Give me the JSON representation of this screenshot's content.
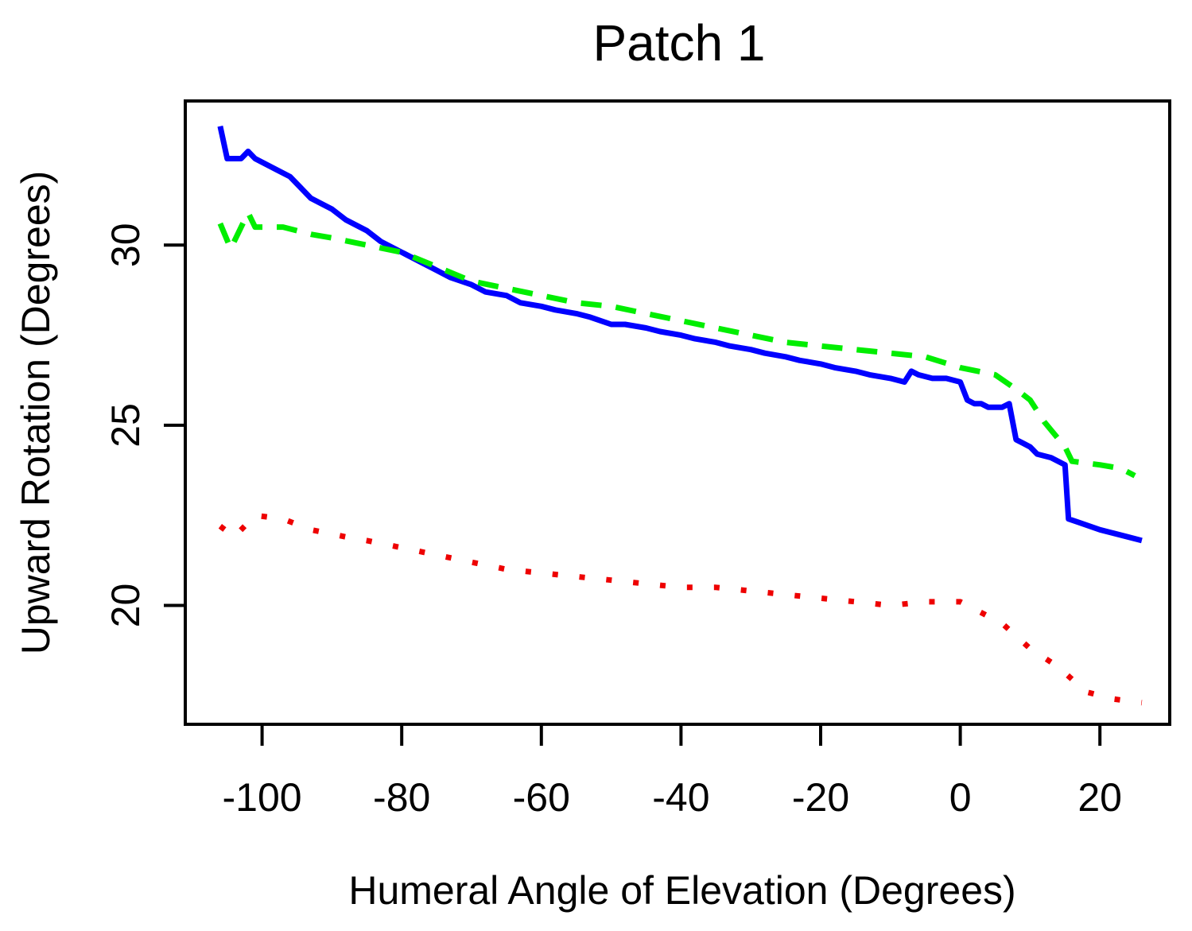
{
  "chart_data": {
    "type": "line",
    "title": "Patch 1",
    "xlabel": "Humeral Angle of Elevation (Degrees)",
    "ylabel": "Upward Rotation (Degrees)",
    "xlim": [
      -111,
      30
    ],
    "ylim": [
      16.7,
      34.0
    ],
    "xticks": [
      -100,
      -80,
      -60,
      -40,
      -20,
      0,
      20
    ],
    "yticks": [
      20,
      25,
      30
    ],
    "grid": false,
    "legend": "none",
    "series": [
      {
        "color": "#0000ff",
        "style": "solid",
        "points": [
          [
            -106,
            33.3
          ],
          [
            -105,
            32.4
          ],
          [
            -103,
            32.4
          ],
          [
            -102,
            32.6
          ],
          [
            -101,
            32.4
          ],
          [
            -98,
            32.1
          ],
          [
            -96,
            31.9
          ],
          [
            -93,
            31.3
          ],
          [
            -90,
            31.0
          ],
          [
            -88,
            30.7
          ],
          [
            -85,
            30.4
          ],
          [
            -83,
            30.1
          ],
          [
            -80,
            29.8
          ],
          [
            -75,
            29.3
          ],
          [
            -73,
            29.1
          ],
          [
            -70,
            28.9
          ],
          [
            -68,
            28.7
          ],
          [
            -65,
            28.6
          ],
          [
            -63,
            28.4
          ],
          [
            -60,
            28.3
          ],
          [
            -58,
            28.2
          ],
          [
            -55,
            28.1
          ],
          [
            -53,
            28.0
          ],
          [
            -50,
            27.8
          ],
          [
            -48,
            27.8
          ],
          [
            -45,
            27.7
          ],
          [
            -43,
            27.6
          ],
          [
            -40,
            27.5
          ],
          [
            -38,
            27.4
          ],
          [
            -35,
            27.3
          ],
          [
            -33,
            27.2
          ],
          [
            -30,
            27.1
          ],
          [
            -28,
            27.0
          ],
          [
            -25,
            26.9
          ],
          [
            -23,
            26.8
          ],
          [
            -20,
            26.7
          ],
          [
            -18,
            26.6
          ],
          [
            -15,
            26.5
          ],
          [
            -13,
            26.4
          ],
          [
            -10,
            26.3
          ],
          [
            -8,
            26.2
          ],
          [
            -7,
            26.5
          ],
          [
            -6,
            26.4
          ],
          [
            -4,
            26.3
          ],
          [
            -2,
            26.3
          ],
          [
            0,
            26.2
          ],
          [
            1,
            25.7
          ],
          [
            2,
            25.6
          ],
          [
            3,
            25.6
          ],
          [
            4,
            25.5
          ],
          [
            6,
            25.5
          ],
          [
            7,
            25.6
          ],
          [
            8,
            24.6
          ],
          [
            9,
            24.5
          ],
          [
            10,
            24.4
          ],
          [
            11,
            24.2
          ],
          [
            13,
            24.1
          ],
          [
            15,
            23.9
          ],
          [
            15.5,
            22.4
          ],
          [
            17,
            22.3
          ],
          [
            20,
            22.1
          ],
          [
            22,
            22.0
          ],
          [
            24,
            21.9
          ],
          [
            26,
            21.8
          ]
        ]
      },
      {
        "color": "#00ee00",
        "style": "dashed",
        "points": [
          [
            -106,
            30.6
          ],
          [
            -104.5,
            29.9
          ],
          [
            -102,
            30.9
          ],
          [
            -101,
            30.5
          ],
          [
            -97,
            30.5
          ],
          [
            -93,
            30.3
          ],
          [
            -90,
            30.2
          ],
          [
            -85,
            30.0
          ],
          [
            -80,
            29.8
          ],
          [
            -75,
            29.4
          ],
          [
            -70,
            29.0
          ],
          [
            -65,
            28.8
          ],
          [
            -60,
            28.6
          ],
          [
            -55,
            28.4
          ],
          [
            -50,
            28.3
          ],
          [
            -45,
            28.1
          ],
          [
            -40,
            27.9
          ],
          [
            -35,
            27.7
          ],
          [
            -30,
            27.5
          ],
          [
            -25,
            27.3
          ],
          [
            -20,
            27.2
          ],
          [
            -15,
            27.1
          ],
          [
            -10,
            27.0
          ],
          [
            -5,
            26.9
          ],
          [
            0,
            26.6
          ],
          [
            5,
            26.4
          ],
          [
            8,
            26.0
          ],
          [
            10,
            25.7
          ],
          [
            12,
            25.1
          ],
          [
            15,
            24.4
          ],
          [
            16,
            24.0
          ],
          [
            20,
            23.9
          ],
          [
            23,
            23.8
          ],
          [
            25,
            23.6
          ]
        ]
      },
      {
        "color": "#ee0000",
        "style": "dotted",
        "points": [
          [
            -106,
            22.2
          ],
          [
            -104,
            21.9
          ],
          [
            -101,
            22.5
          ],
          [
            -97,
            22.4
          ],
          [
            -93,
            22.1
          ],
          [
            -88,
            21.9
          ],
          [
            -85,
            21.8
          ],
          [
            -80,
            21.6
          ],
          [
            -75,
            21.4
          ],
          [
            -70,
            21.2
          ],
          [
            -65,
            21.0
          ],
          [
            -60,
            20.9
          ],
          [
            -55,
            20.8
          ],
          [
            -50,
            20.7
          ],
          [
            -45,
            20.6
          ],
          [
            -40,
            20.5
          ],
          [
            -35,
            20.5
          ],
          [
            -30,
            20.4
          ],
          [
            -25,
            20.3
          ],
          [
            -20,
            20.2
          ],
          [
            -15,
            20.1
          ],
          [
            -10,
            20.0
          ],
          [
            -5,
            20.1
          ],
          [
            0,
            20.1
          ],
          [
            3,
            19.8
          ],
          [
            6,
            19.5
          ],
          [
            10,
            18.8
          ],
          [
            14,
            18.3
          ],
          [
            18,
            17.6
          ],
          [
            22,
            17.4
          ],
          [
            26,
            17.3
          ]
        ]
      }
    ]
  }
}
